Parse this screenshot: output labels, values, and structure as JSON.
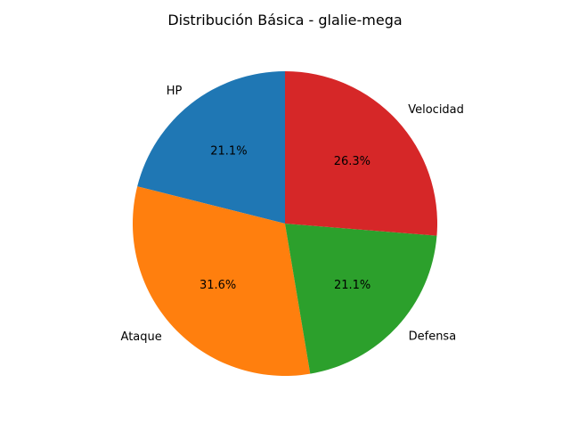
{
  "chart_data": {
    "type": "pie",
    "title": "Distribución Básica - glalie-mega",
    "slices": [
      {
        "label": "HP",
        "value": 21.1,
        "pct_label": "21.1%",
        "color": "#1f77b4"
      },
      {
        "label": "Ataque",
        "value": 31.6,
        "pct_label": "31.6%",
        "color": "#ff7f0e"
      },
      {
        "label": "Defensa",
        "value": 21.1,
        "pct_label": "21.1%",
        "color": "#2ca02c"
      },
      {
        "label": "Velocidad",
        "value": 26.3,
        "pct_label": "26.3%",
        "color": "#d62728"
      }
    ],
    "start_angle_deg": 90,
    "direction": "counterclockwise"
  }
}
